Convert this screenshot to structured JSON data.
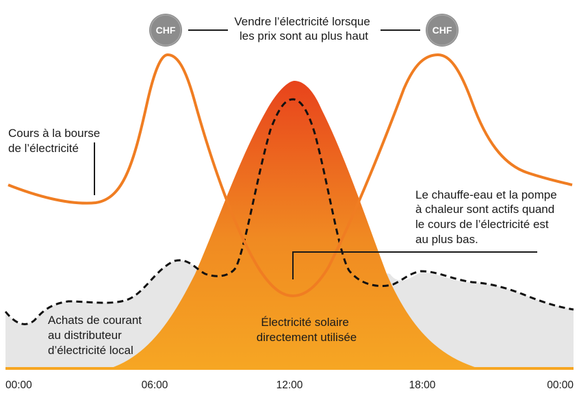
{
  "colors": {
    "price_curve": "#f07d22",
    "solar_fill_top": "#e8431c",
    "solar_fill_bottom": "#f6a623",
    "grid_fill": "#e6e6e6",
    "dashed_line": "#111111",
    "coin": "#8c8c8c",
    "baseline": "#f6a623"
  },
  "icons": [
    "chf-coin-icon",
    "chf-coin-icon"
  ],
  "coin_label": "CHF",
  "annotations": {
    "sell_high": [
      "Vendre l’électricité lorsque",
      "les prix sont au plus haut"
    ],
    "market_price": [
      "Cours à la bourse",
      "de l’électricité"
    ],
    "low_price": [
      "Le chauffe-eau et la pompe",
      "à chaleur sont actifs quand",
      "le cours de l’électricité est",
      "au plus bas."
    ],
    "grid_purchase": [
      "Achats de courant",
      "au distributeur",
      "d’électricité local"
    ],
    "solar_direct": [
      "Électricité solaire",
      "directement utilisée"
    ]
  },
  "x_axis": {
    "ticks": [
      "00:00",
      "06:00",
      "12:00",
      "18:00",
      "00:00"
    ]
  }
}
